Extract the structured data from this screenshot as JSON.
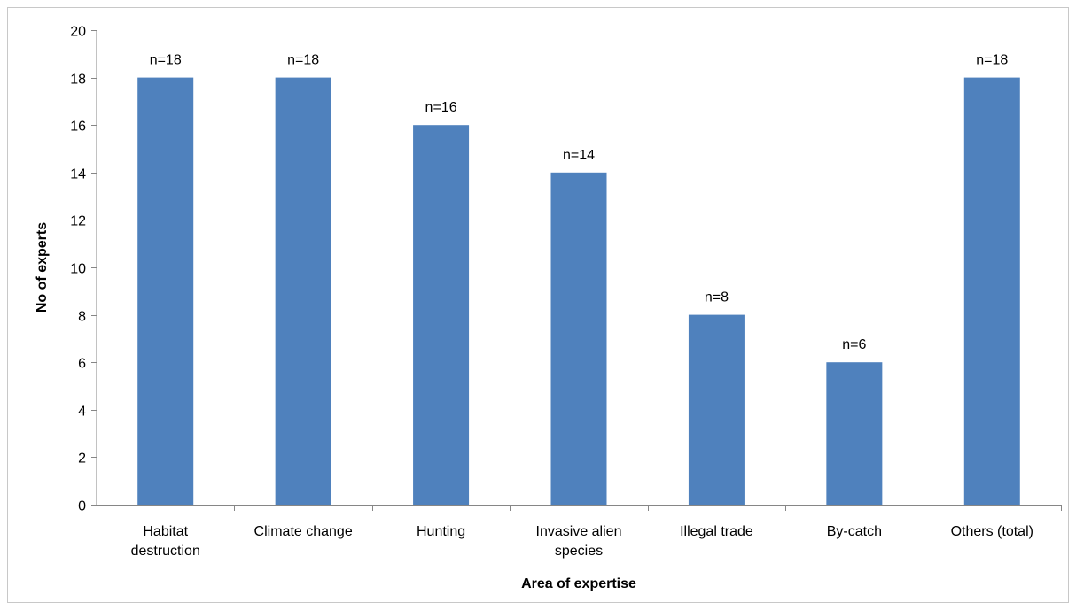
{
  "chart_data": {
    "type": "bar",
    "title": "",
    "xlabel": "Area of expertise",
    "ylabel": "No of experts",
    "categories": [
      [
        "Habitat",
        "destruction"
      ],
      [
        "Climate change"
      ],
      [
        "Hunting"
      ],
      [
        "Invasive alien",
        "species"
      ],
      [
        "Illegal trade"
      ],
      [
        "By-catch"
      ],
      [
        "Others (total)"
      ]
    ],
    "values": [
      18,
      18,
      16,
      14,
      8,
      6,
      18
    ],
    "data_labels": [
      "n=18",
      "n=18",
      "n=16",
      "n=14",
      "n=8",
      "n=6",
      "n=18"
    ],
    "ylim": [
      0,
      20
    ],
    "yticks": [
      0,
      2,
      4,
      6,
      8,
      10,
      12,
      14,
      16,
      18,
      20
    ],
    "grid": false,
    "legend": "none",
    "bar_color": "#4f81bd"
  }
}
